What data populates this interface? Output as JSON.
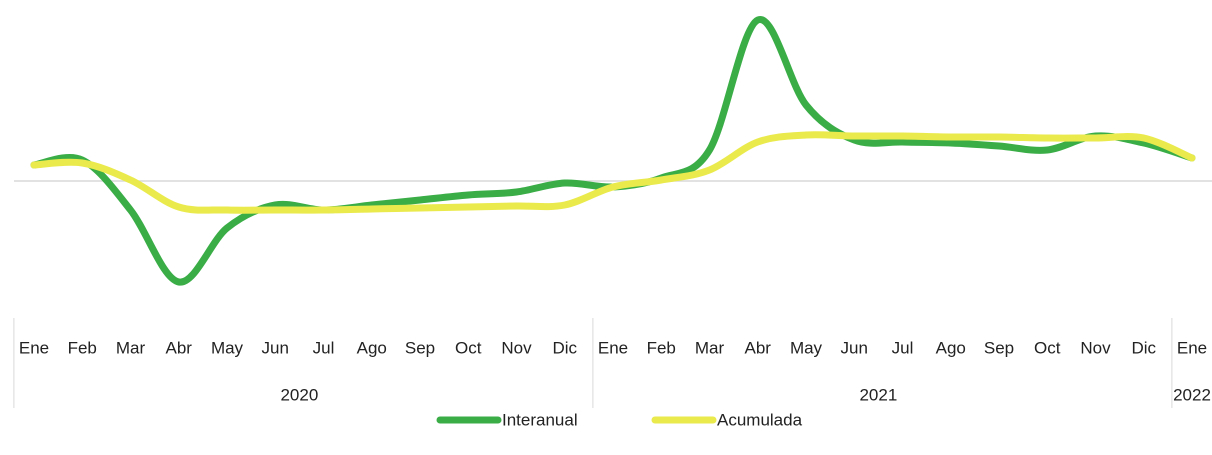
{
  "chart_data": {
    "type": "line",
    "category_groups": [
      {
        "label": "2020",
        "categories": [
          "Ene",
          "Feb",
          "Mar",
          "Abr",
          "May",
          "Jun",
          "Jul",
          "Ago",
          "Sep",
          "Oct",
          "Nov",
          "Dic"
        ]
      },
      {
        "label": "2021",
        "categories": [
          "Ene",
          "Feb",
          "Mar",
          "Abr",
          "May",
          "Jun",
          "Jul",
          "Ago",
          "Sep",
          "Oct",
          "Nov",
          "Dic"
        ]
      },
      {
        "label": "2022",
        "categories": [
          "Ene"
        ]
      }
    ],
    "series": [
      {
        "name": "Interanual",
        "color": "#3aad47",
        "values": [
          1.6,
          2.1,
          -2.9,
          -10.1,
          -4.7,
          -2.4,
          -2.9,
          -2.4,
          -1.9,
          -1.4,
          -1.1,
          -0.2,
          -0.6,
          0.3,
          3.1,
          16.1,
          7.6,
          4.1,
          3.9,
          3.8,
          3.5,
          3.1,
          4.5,
          3.8,
          2.3
        ]
      },
      {
        "name": "Acumulada",
        "color": "#eaea4c",
        "values": [
          1.6,
          1.8,
          0.1,
          -2.6,
          -2.9,
          -2.9,
          -2.9,
          -2.8,
          -2.7,
          -2.6,
          -2.5,
          -2.4,
          -0.6,
          0.1,
          1.1,
          3.9,
          4.6,
          4.5,
          4.5,
          4.4,
          4.4,
          4.3,
          4.3,
          4.3,
          2.3
        ]
      }
    ],
    "ylim": [
      -12,
      17
    ],
    "zero_line": true,
    "smooth": true,
    "legend": "bottom"
  }
}
